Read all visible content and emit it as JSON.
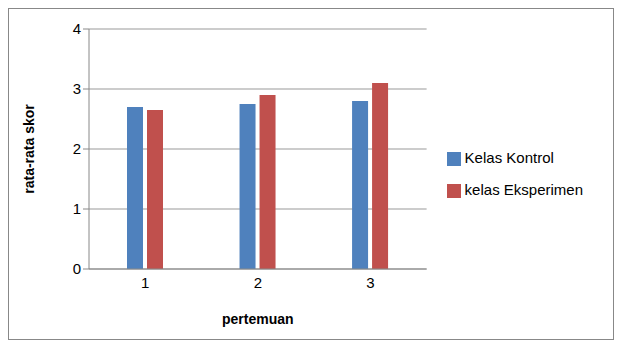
{
  "chart_data": {
    "type": "bar",
    "x_label": "pertemuan",
    "y_label": "rata-rata skor",
    "categories": [
      "1",
      "2",
      "3"
    ],
    "series": [
      {
        "name": "Kelas Kontrol",
        "color": "#4f81bd",
        "values": [
          2.7,
          2.75,
          2.8
        ]
      },
      {
        "name": "kelas Eksperimen",
        "color": "#c0504d",
        "values": [
          2.65,
          2.9,
          3.1
        ]
      }
    ],
    "ylim": [
      0,
      4
    ],
    "yticks": [
      0,
      1,
      2,
      3,
      4
    ],
    "grid": true,
    "legend": "right"
  }
}
